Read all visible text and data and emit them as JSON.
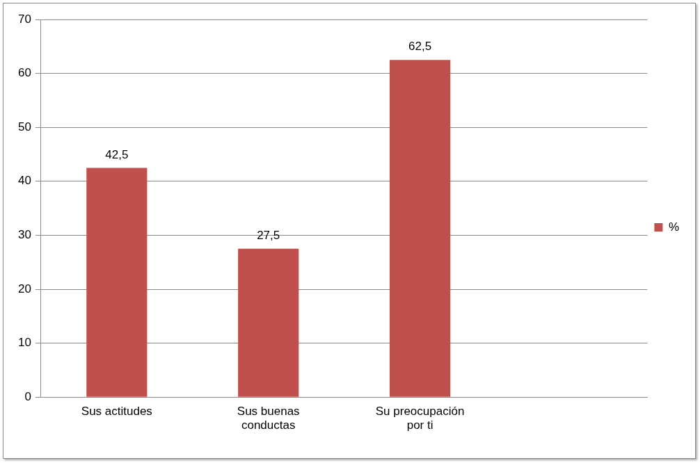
{
  "chart_data": {
    "type": "bar",
    "categories": [
      "Sus actitudes",
      "Sus buenas conductas",
      "Su preocupación por ti",
      null
    ],
    "series": [
      {
        "name": "%",
        "color": "#c0504d",
        "values": [
          42.5,
          27.5,
          62.5,
          null
        ],
        "value_labels": [
          "42,5",
          "27,5",
          "62,5",
          null
        ]
      }
    ],
    "ylim": [
      0,
      70
    ],
    "yticks": [
      0,
      10,
      20,
      30,
      40,
      50,
      60,
      70
    ],
    "grid": "y",
    "legend": "right"
  }
}
